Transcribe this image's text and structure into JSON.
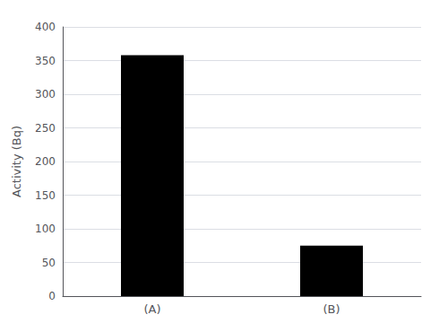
{
  "chart_data": {
    "type": "bar",
    "categories": [
      "(A)",
      "(B)"
    ],
    "values": [
      358,
      75
    ],
    "color": "#000000",
    "ylabel": "Activity (Bq)",
    "ylim": [
      0,
      400
    ],
    "yticks": [
      0,
      50,
      100,
      150,
      200,
      250,
      300,
      350,
      400
    ],
    "grid": true
  }
}
